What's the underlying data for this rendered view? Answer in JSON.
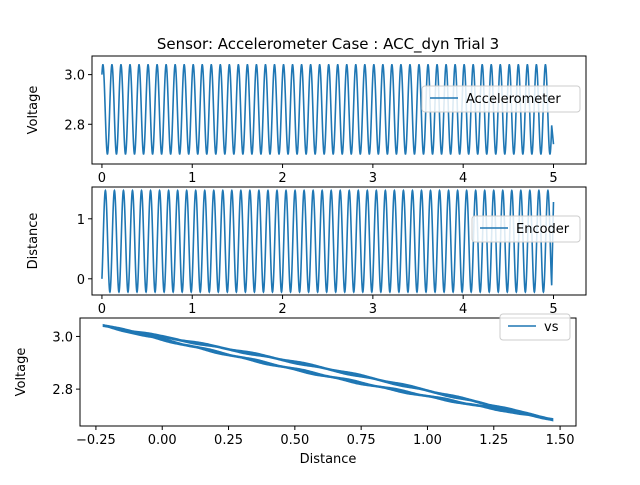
{
  "figure": {
    "title": "Sensor: Accelerometer Case : ACC_dyn Trial 3"
  },
  "colors": {
    "series": "#1f77b4",
    "axes": "#000000",
    "legend_border": "#cccccc",
    "background": "#ffffff"
  },
  "chart_data": [
    {
      "type": "line",
      "ylabel": "Voltage",
      "xlabel": "",
      "xlim": [
        -0.11,
        5.36
      ],
      "ylim": [
        2.64,
        3.075
      ],
      "xticks": [
        0,
        1,
        2,
        3,
        4,
        5
      ],
      "yticks": [
        2.8,
        3.0
      ],
      "xtick_labels": [
        "0",
        "1",
        "2",
        "3",
        "4",
        "5"
      ],
      "ytick_labels": [
        "2.8",
        "3.0"
      ],
      "legend": {
        "placement": "right",
        "entries": [
          "Accelerometer"
        ]
      },
      "series": [
        {
          "name": "Accelerometer",
          "signal": {
            "form": "sinusoid",
            "x_start": 0,
            "x_end": 5.0,
            "cycles": 50,
            "min": 2.68,
            "max": 3.04,
            "start_value": 3.0,
            "end_value": 2.72
          }
        }
      ]
    },
    {
      "type": "line",
      "ylabel": "Distance",
      "xlabel": "",
      "xlim": [
        -0.11,
        5.36
      ],
      "ylim": [
        -0.27,
        1.53
      ],
      "xticks": [
        0,
        1,
        2,
        3,
        4,
        5
      ],
      "yticks": [
        0,
        1
      ],
      "xtick_labels": [
        "0",
        "1",
        "2",
        "3",
        "4",
        "5"
      ],
      "ytick_labels": [
        "0",
        "1"
      ],
      "legend": {
        "placement": "right",
        "entries": [
          "Encoder"
        ]
      },
      "series": [
        {
          "name": "Encoder",
          "signal": {
            "form": "sinusoid",
            "x_start": 0,
            "x_end": 5.0,
            "cycles": 50,
            "min": -0.22,
            "max": 1.47,
            "start_value": 0.0,
            "end_value": 1.28
          }
        }
      ]
    },
    {
      "type": "scatter",
      "ylabel": "Voltage",
      "xlabel": "Distance",
      "xlim": [
        -0.31,
        1.56
      ],
      "ylim": [
        2.66,
        3.07
      ],
      "xticks": [
        -0.25,
        0.0,
        0.25,
        0.5,
        0.75,
        1.0,
        1.25,
        1.5
      ],
      "yticks": [
        2.8,
        3.0
      ],
      "xtick_labels": [
        "−0.25",
        "0.00",
        "0.25",
        "0.50",
        "0.75",
        "1.00",
        "1.25",
        "1.50"
      ],
      "ytick_labels": [
        "2.8",
        "3.0"
      ],
      "legend": {
        "placement": "top-right",
        "entries": [
          "vs"
        ]
      },
      "series": [
        {
          "name": "vs",
          "loop": {
            "x_range": [
              -0.22,
              1.47
            ],
            "y_at_x_min": 3.04,
            "y_at_x_max": 2.685,
            "loop_half_width": 0.012
          }
        }
      ]
    }
  ]
}
